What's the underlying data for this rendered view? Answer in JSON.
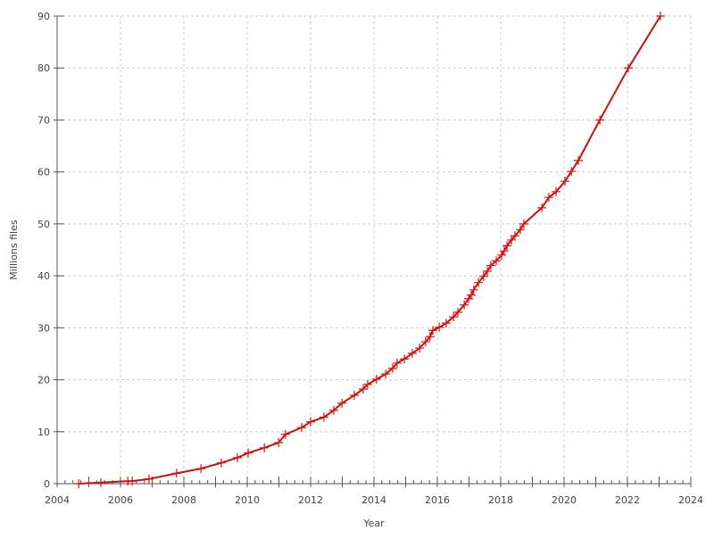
{
  "chart_data": {
    "type": "line",
    "title": "",
    "xlabel": "Year",
    "ylabel": "Millions files",
    "xlim": [
      2004,
      2024
    ],
    "ylim": [
      0,
      90
    ],
    "xticks": [
      2004,
      2006,
      2008,
      2010,
      2012,
      2014,
      2016,
      2018,
      2020,
      2022,
      2024
    ],
    "yticks": [
      0,
      10,
      20,
      30,
      40,
      50,
      60,
      70,
      80,
      90
    ],
    "grid": true,
    "legend": "none",
    "marker": "plus",
    "colors": {
      "line": "#c0140c",
      "marker": "#e01010",
      "grid": "#cccccc",
      "axis": "#555555"
    },
    "series": [
      {
        "x": [
          2004.68,
          2005.38,
          2006.23,
          2006.37,
          2006.9,
          2007.77,
          2008.54,
          2009.18,
          2009.69,
          2010.03,
          2010.54,
          2010.99,
          2011.21,
          2011.72,
          2012.0,
          2012.42,
          2012.73,
          2012.99,
          2013.38,
          2013.66,
          2013.8,
          2014.08,
          2014.37,
          2014.59,
          2014.73,
          2014.96,
          2015.21,
          2015.44,
          2015.63,
          2015.77,
          2015.86,
          2016.06,
          2016.28,
          2016.51,
          2016.65,
          2016.85,
          2016.99,
          2017.07,
          2017.15,
          2017.3,
          2017.46,
          2017.58,
          2017.69,
          2017.86,
          2018.03,
          2018.11,
          2018.2,
          2018.34,
          2018.45,
          2018.62,
          2018.73,
          2019.3,
          2019.52,
          2019.75,
          2020.03,
          2020.23,
          2020.45,
          2021.13,
          2022.03,
          2023.04
        ],
        "y": [
          0,
          0.2,
          0.5,
          0.5,
          0.9,
          2.0,
          2.9,
          4.0,
          5.0,
          5.9,
          6.9,
          7.9,
          9.5,
          10.8,
          11.9,
          12.8,
          14.1,
          15.5,
          17.0,
          18.2,
          19.1,
          20.1,
          21.1,
          22.2,
          23.2,
          24.0,
          25.1,
          26.1,
          27.3,
          28.3,
          29.5,
          30.1,
          30.9,
          32.1,
          33.0,
          34.4,
          35.6,
          36.3,
          37.3,
          38.7,
          39.9,
          40.9,
          42.0,
          42.9,
          44.0,
          44.8,
          45.8,
          46.9,
          47.7,
          48.9,
          50.0,
          53.1,
          55.1,
          56.2,
          58.2,
          60.1,
          62.2,
          70.0,
          80.0,
          90.0
        ]
      }
    ]
  }
}
